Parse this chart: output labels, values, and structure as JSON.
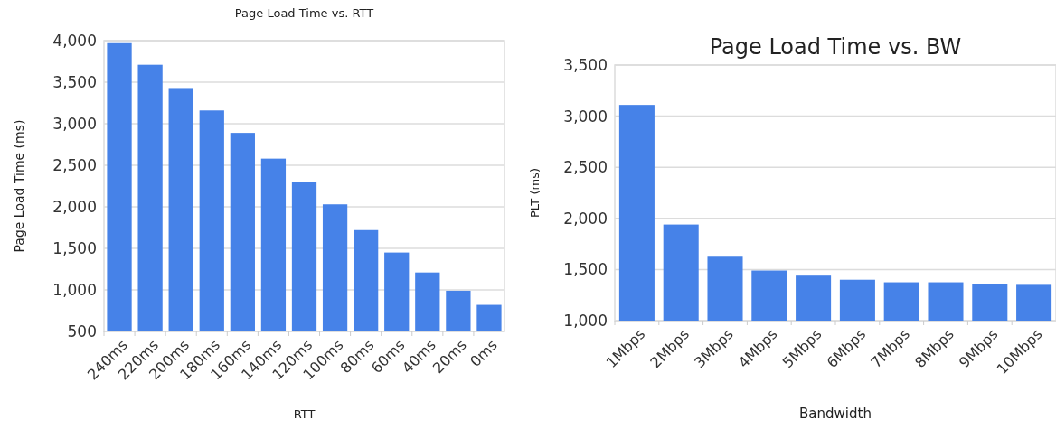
{
  "chart_data": [
    {
      "type": "bar",
      "title": "Page Load Time vs. RTT",
      "xlabel": "RTT",
      "ylabel": "Page Load Time (ms)",
      "categories": [
        "240ms",
        "220ms",
        "200ms",
        "180ms",
        "160ms",
        "140ms",
        "120ms",
        "100ms",
        "80ms",
        "60ms",
        "40ms",
        "20ms",
        "0ms"
      ],
      "values": [
        3970,
        3710,
        3430,
        3160,
        2890,
        2580,
        2300,
        2030,
        1720,
        1450,
        1210,
        990,
        820
      ],
      "color": "#4682e8",
      "ylim": [
        500,
        4000
      ],
      "yticks": [
        {
          "value": 500,
          "label": "500"
        },
        {
          "value": 1000,
          "label": "1,000"
        },
        {
          "value": 1500,
          "label": "1,500"
        },
        {
          "value": 2000,
          "label": "2,000"
        },
        {
          "value": 2500,
          "label": "2,500"
        },
        {
          "value": 3000,
          "label": "3,000"
        },
        {
          "value": 3500,
          "label": "3,500"
        },
        {
          "value": 4000,
          "label": "4,000"
        }
      ],
      "grid": "y"
    },
    {
      "type": "bar",
      "title": "Page Load Time vs. BW",
      "xlabel": "Bandwidth",
      "ylabel": "PLT (ms)",
      "categories": [
        "1Mbps",
        "2Mbps",
        "3Mbps",
        "4Mbps",
        "5Mbps",
        "6Mbps",
        "7Mbps",
        "8Mbps",
        "9Mbps",
        "10Mbps"
      ],
      "values": [
        3110,
        1940,
        1625,
        1490,
        1440,
        1400,
        1375,
        1375,
        1360,
        1350
      ],
      "color": "#4682e8",
      "ylim": [
        1000,
        3500
      ],
      "yticks": [
        {
          "value": 1000,
          "label": "1,000"
        },
        {
          "value": 1500,
          "label": "1,500"
        },
        {
          "value": 2000,
          "label": "2,000"
        },
        {
          "value": 2500,
          "label": "2,500"
        },
        {
          "value": 3000,
          "label": "3,000"
        },
        {
          "value": 3500,
          "label": "3,500"
        }
      ],
      "grid": "y"
    }
  ]
}
